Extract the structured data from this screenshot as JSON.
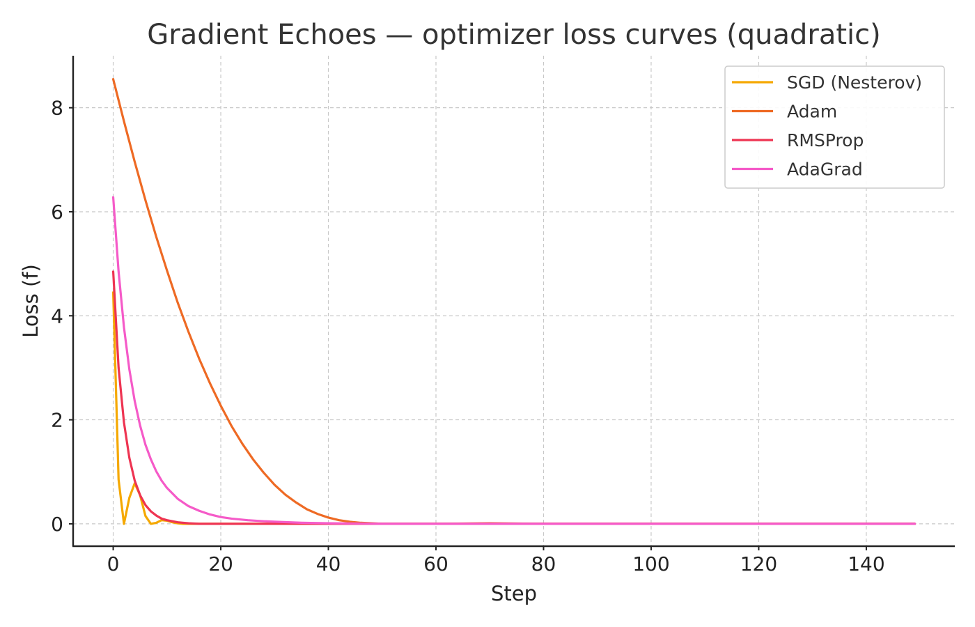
{
  "chart_data": {
    "type": "line",
    "title": "Gradient Echoes — optimizer loss curves (quadratic)",
    "xlabel": "Step",
    "ylabel": "Loss (f)",
    "xlim": [
      -7.45,
      156.45
    ],
    "ylim": [
      -0.43,
      9.0
    ],
    "xticks": [
      0,
      20,
      40,
      60,
      80,
      100,
      120,
      140
    ],
    "yticks": [
      0,
      2,
      4,
      6,
      8
    ],
    "grid": true,
    "legend_position": "top-right",
    "series": [
      {
        "name": "SGD (Nesterov)",
        "color": "#f5a800",
        "x": [
          0,
          1,
          2,
          3,
          4,
          5,
          6,
          7,
          8,
          9,
          10,
          11,
          12,
          13,
          14,
          15,
          20,
          30,
          149
        ],
        "y": [
          4.45,
          0.85,
          0.0,
          0.5,
          0.78,
          0.55,
          0.15,
          0.0,
          0.02,
          0.07,
          0.06,
          0.03,
          0.01,
          0.0,
          0.0,
          0.0,
          0.0,
          0.0,
          0.0
        ]
      },
      {
        "name": "Adam",
        "color": "#ee6a24",
        "x": [
          0,
          2,
          4,
          6,
          8,
          10,
          12,
          14,
          16,
          18,
          20,
          22,
          24,
          26,
          28,
          30,
          32,
          34,
          36,
          38,
          40,
          42,
          44,
          46,
          48,
          50,
          55,
          60,
          70,
          80,
          100,
          149
        ],
        "y": [
          8.55,
          7.74,
          6.96,
          6.22,
          5.52,
          4.87,
          4.25,
          3.69,
          3.17,
          2.7,
          2.27,
          1.88,
          1.54,
          1.24,
          0.98,
          0.75,
          0.56,
          0.41,
          0.28,
          0.19,
          0.12,
          0.07,
          0.04,
          0.02,
          0.01,
          0.0,
          0.0,
          0.0,
          0.01,
          0.0,
          0.0,
          0.0
        ]
      },
      {
        "name": "RMSProp",
        "color": "#ee3452",
        "x": [
          0,
          1,
          2,
          3,
          4,
          5,
          6,
          7,
          8,
          9,
          10,
          11,
          12,
          14,
          16,
          18,
          20,
          25,
          149
        ],
        "y": [
          4.85,
          3.0,
          1.95,
          1.27,
          0.83,
          0.55,
          0.36,
          0.24,
          0.16,
          0.1,
          0.07,
          0.05,
          0.03,
          0.01,
          0.0,
          0.0,
          0.0,
          0.0,
          0.0
        ]
      },
      {
        "name": "AdaGrad",
        "color": "#f55ac8",
        "x": [
          0,
          1,
          2,
          3,
          4,
          5,
          6,
          7,
          8,
          9,
          10,
          12,
          14,
          16,
          18,
          20,
          22,
          25,
          28,
          30,
          35,
          40,
          45,
          50,
          60,
          149
        ],
        "y": [
          6.28,
          4.85,
          3.78,
          2.97,
          2.36,
          1.89,
          1.52,
          1.24,
          1.01,
          0.83,
          0.69,
          0.48,
          0.34,
          0.25,
          0.18,
          0.13,
          0.1,
          0.07,
          0.05,
          0.04,
          0.02,
          0.01,
          0.005,
          0.0,
          0.0,
          0.0
        ]
      }
    ]
  }
}
